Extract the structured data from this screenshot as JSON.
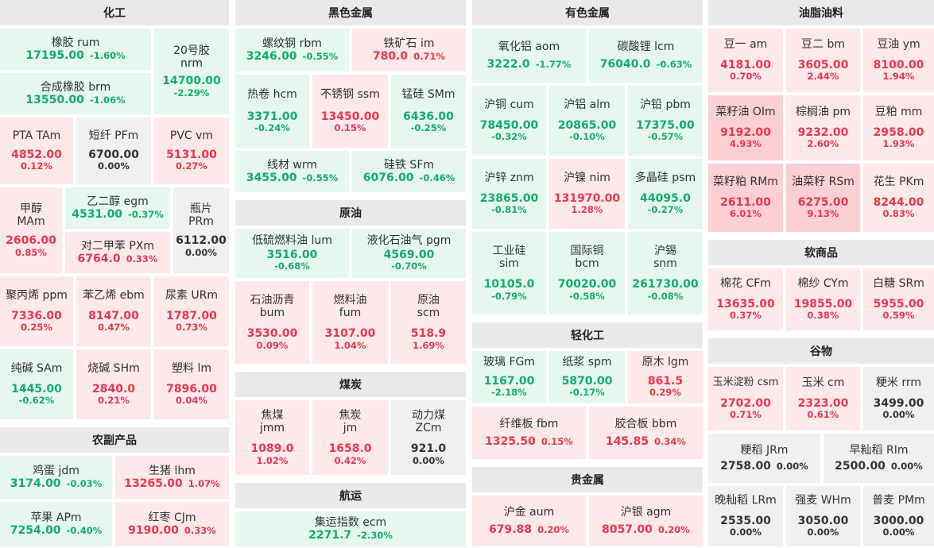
{
  "sections": {
    "chemical": "化工",
    "agri": "农副产品",
    "ferrous": "黑色金属",
    "crude": "原油",
    "coal": "煤炭",
    "shipping": "航运",
    "nonferrous": "有色金属",
    "light": "轻化工",
    "precious": "贵金属",
    "oils": "油脂油料",
    "soft": "软商品",
    "grains": "谷物"
  },
  "colors": {
    "up": "#e8384e",
    "down": "#13ac6e",
    "flat": "#333333"
  },
  "tiles": {
    "rum": {
      "name": "橡胶  rum",
      "value": "17195.00",
      "change": "-1.60%"
    },
    "brm": {
      "name": "合成橡胶  brm",
      "value": "13550.00",
      "change": "-1.06%"
    },
    "nrm": {
      "name1": "20号胶",
      "name2": "nrm",
      "value": "14700.00",
      "change": "-2.29%"
    },
    "tam": {
      "name": "PTA  TAm",
      "value": "4852.00",
      "change": "0.12%"
    },
    "pfm": {
      "name": "短纤  PFm",
      "value": "6700.00",
      "change": "0.00%"
    },
    "vm": {
      "name": "PVC  vm",
      "value": "5131.00",
      "change": "0.27%"
    },
    "mam": {
      "name1": "甲醇",
      "name2": "MAm",
      "value": "2606.00",
      "change": "0.85%"
    },
    "egm": {
      "name": "乙二醇  egm",
      "value": "4531.00",
      "change": "-0.37%"
    },
    "pxm": {
      "name": "对二甲苯  PXm",
      "value": "6764.0",
      "change": "0.33%"
    },
    "prm": {
      "name1": "瓶片",
      "name2": "PRm",
      "value": "6112.00",
      "change": "0.00%"
    },
    "ppm": {
      "name": "聚丙烯  ppm",
      "value": "7336.00",
      "change": "0.25%"
    },
    "ebm": {
      "name": "苯乙烯  ebm",
      "value": "8147.00",
      "change": "0.47%"
    },
    "urm": {
      "name": "尿素  URm",
      "value": "1787.00",
      "change": "0.73%"
    },
    "sam": {
      "name": "纯碱  SAm",
      "value": "1445.00",
      "change": "-0.62%"
    },
    "shm": {
      "name": "烧碱  SHm",
      "value": "2840.0",
      "change": "0.21%"
    },
    "lm": {
      "name": "塑料  lm",
      "value": "7896.00",
      "change": "0.04%"
    },
    "jdm": {
      "name": "鸡蛋  jdm",
      "value": "3174.00",
      "change": "-0.03%"
    },
    "lhm": {
      "name": "生猪  lhm",
      "value": "13265.00",
      "change": "1.07%"
    },
    "apm": {
      "name": "苹果  APm",
      "value": "7254.00",
      "change": "-0.40%"
    },
    "cjm": {
      "name": "红枣  CJm",
      "value": "9190.00",
      "change": "0.33%"
    },
    "rbm": {
      "name": "螺纹钢  rbm",
      "value": "3246.00",
      "change": "-0.55%"
    },
    "im": {
      "name": "铁矿石  im",
      "value": "780.0",
      "change": "0.71%"
    },
    "hcm": {
      "name": "热卷  hcm",
      "value": "3371.00",
      "change": "-0.24%"
    },
    "ssm": {
      "name": "不锈钢  ssm",
      "value": "13450.00",
      "change": "0.15%"
    },
    "smm": {
      "name": "锰硅  SMm",
      "value": "6436.00",
      "change": "-0.25%"
    },
    "wrm": {
      "name": "线材  wrm",
      "value": "3455.00",
      "change": "-0.55%"
    },
    "sfm": {
      "name": "硅铁  SFm",
      "value": "6076.00",
      "change": "-0.46%"
    },
    "lum": {
      "name": "低硫燃料油  lum",
      "value": "3516.00",
      "change": "-0.68%"
    },
    "pgm": {
      "name": "液化石油气  pgm",
      "value": "4569.00",
      "change": "-0.70%"
    },
    "bum": {
      "name1": "石油沥青",
      "name2": "bum",
      "value": "3530.00",
      "change": "0.09%"
    },
    "fum": {
      "name1": "燃料油",
      "name2": "fum",
      "value": "3107.00",
      "change": "1.04%"
    },
    "scm": {
      "name1": "原油",
      "name2": "scm",
      "value": "518.9",
      "change": "1.69%"
    },
    "jmm": {
      "name1": "焦煤",
      "name2": "jmm",
      "value": "1089.0",
      "change": "1.02%"
    },
    "jm": {
      "name1": "焦炭",
      "name2": "jm",
      "value": "1658.0",
      "change": "0.42%"
    },
    "zcm": {
      "name1": "动力煤",
      "name2": "ZCm",
      "value": "921.0",
      "change": "0.00%"
    },
    "ecm": {
      "name": "集运指数  ecm",
      "value": "2271.7",
      "change": "-2.30%"
    },
    "aom": {
      "name": "氧化铝  aom",
      "value": "3222.0",
      "change": "-1.77%"
    },
    "lcm": {
      "name": "碳酸锂  lcm",
      "value": "76040.0",
      "change": "-0.63%"
    },
    "cum": {
      "name": "沪铜  cum",
      "value": "78450.00",
      "change": "-0.32%"
    },
    "alm": {
      "name": "沪铝  alm",
      "value": "20865.00",
      "change": "-0.10%"
    },
    "pbm": {
      "name": "沪铅  pbm",
      "value": "17375.00",
      "change": "-0.57%"
    },
    "znm": {
      "name": "沪锌  znm",
      "value": "23865.00",
      "change": "-0.81%"
    },
    "nim": {
      "name": "沪镍  nim",
      "value": "131970.00",
      "change": "1.28%"
    },
    "psm": {
      "name": "多晶硅  psm",
      "value": "44095.0",
      "change": "-0.27%"
    },
    "sim": {
      "name1": "工业硅",
      "name2": "sim",
      "value": "10105.0",
      "change": "-0.79%"
    },
    "bcm": {
      "name1": "国际铜",
      "name2": "bcm",
      "value": "70020.00",
      "change": "-0.58%"
    },
    "snm": {
      "name1": "沪锡",
      "name2": "snm",
      "value": "261730.00",
      "change": "-0.08%"
    },
    "fgm": {
      "name": "玻璃  FGm",
      "value": "1167.00",
      "change": "-2.18%"
    },
    "spm": {
      "name": "纸浆  spm",
      "value": "5870.00",
      "change": "-0.17%"
    },
    "lgm": {
      "name": "原木  lgm",
      "value": "861.5",
      "change": "0.29%"
    },
    "fbm": {
      "name": "纤维板  fbm",
      "value": "1325.50",
      "change": "0.15%"
    },
    "bbm": {
      "name": "胶合板  bbm",
      "value": "145.85",
      "change": "0.34%"
    },
    "aum": {
      "name": "沪金  aum",
      "value": "679.88",
      "change": "0.20%"
    },
    "agm": {
      "name": "沪银  agm",
      "value": "8057.00",
      "change": "0.20%"
    },
    "am": {
      "name": "豆一  am",
      "value": "4181.00",
      "change": "0.70%"
    },
    "bm": {
      "name": "豆二  bm",
      "value": "3605.00",
      "change": "2.44%"
    },
    "ym": {
      "name": "豆油  ym",
      "value": "8100.00",
      "change": "1.94%"
    },
    "oim": {
      "name": "菜籽油  OIm",
      "value": "9192.00",
      "change": "4.93%"
    },
    "pm": {
      "name": "棕榈油  pm",
      "value": "9232.00",
      "change": "2.60%"
    },
    "mm": {
      "name": "豆粕  mm",
      "value": "2958.00",
      "change": "1.93%"
    },
    "rmm": {
      "name": "菜籽粕  RMm",
      "value": "2611.00",
      "change": "6.01%"
    },
    "rsm": {
      "name": "油菜籽  RSm",
      "value": "6275.00",
      "change": "9.13%"
    },
    "pkm": {
      "name": "花生  PKm",
      "value": "8244.00",
      "change": "0.83%"
    },
    "cfm": {
      "name": "棉花  CFm",
      "value": "13635.00",
      "change": "0.37%"
    },
    "cym": {
      "name": "棉纱  CYm",
      "value": "19855.00",
      "change": "0.38%"
    },
    "srm": {
      "name": "白糖  SRm",
      "value": "5955.00",
      "change": "0.59%"
    },
    "csm": {
      "name": "玉米淀粉  csm",
      "value": "2702.00",
      "change": "0.71%"
    },
    "cm": {
      "name": "玉米  cm",
      "value": "2323.00",
      "change": "0.61%"
    },
    "rrm": {
      "name": "粳米  rrm",
      "value": "3499.00",
      "change": "0.00%"
    },
    "jrm": {
      "name": "粳稻  JRm",
      "value": "2758.00",
      "change": "0.00%"
    },
    "rim": {
      "name": "早籼稻  RIm",
      "value": "2500.00",
      "change": "0.00%"
    },
    "lrm": {
      "name": "晚籼稻  LRm",
      "value": "2535.00",
      "change": "0.00%"
    },
    "whm": {
      "name": "强麦  WHm",
      "value": "3050.00",
      "change": "0.00%"
    },
    "pmm": {
      "name": "普麦  PMm",
      "value": "3000.00",
      "change": "0.00%"
    }
  }
}
